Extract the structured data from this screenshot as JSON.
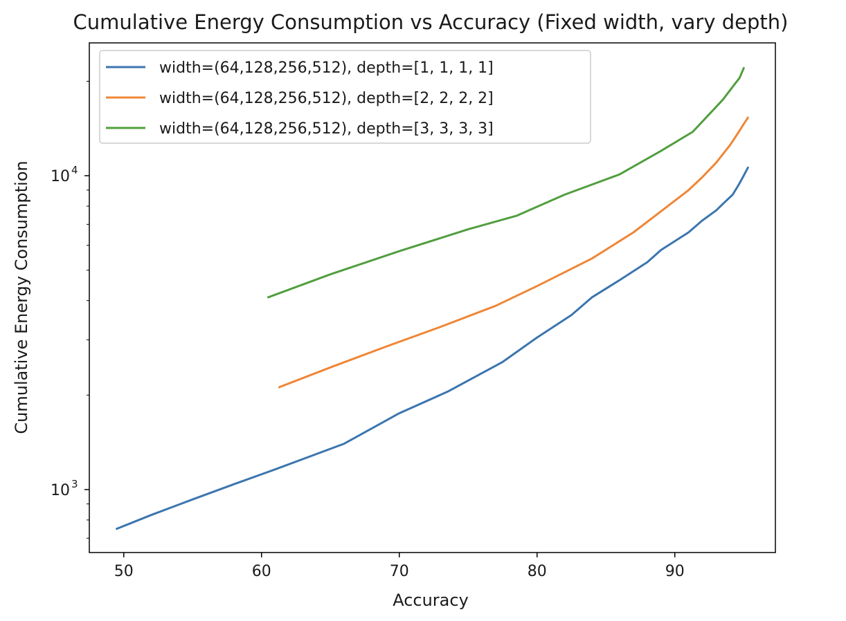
{
  "chart_data": {
    "type": "line",
    "title": "Cumulative Energy Consumption vs Accuracy (Fixed width, vary depth)",
    "xlabel": "Accuracy",
    "ylabel": "Cumulative Energy Consumption",
    "xscale": "linear",
    "yscale": "log",
    "xlim": [
      47.5,
      97.3
    ],
    "ylim": [
      630,
      26500
    ],
    "xticks": [
      50,
      60,
      70,
      80,
      90
    ],
    "xtick_labels": [
      "50",
      "60",
      "70",
      "80",
      "90"
    ],
    "yticks": [
      1000,
      10000
    ],
    "ytick_labels": [
      {
        "base": "10",
        "exp": "3"
      },
      {
        "base": "10",
        "exp": "4"
      }
    ],
    "grid": false,
    "legend_position": "upper-left",
    "series": [
      {
        "name": "width=(64,128,256,512), depth=[1, 1, 1, 1]",
        "color": "#3b75af",
        "x": [
          49.5,
          52,
          55,
          58,
          61,
          63,
          66,
          70,
          73.5,
          77.5,
          80,
          82.5,
          84,
          86,
          88,
          89,
          91,
          92,
          93,
          93.7,
          94.2,
          94.6,
          95,
          95.3
        ],
        "y": [
          750,
          830,
          930,
          1040,
          1160,
          1250,
          1400,
          1750,
          2050,
          2550,
          3050,
          3600,
          4100,
          4650,
          5300,
          5800,
          6600,
          7200,
          7750,
          8300,
          8700,
          9300,
          10000,
          10600
        ]
      },
      {
        "name": "width=(64,128,256,512), depth=[2, 2, 2, 2]",
        "color": "#ef8636",
        "x": [
          61.3,
          65,
          69,
          73,
          77,
          80,
          84,
          87,
          89,
          91,
          92,
          93,
          94,
          94.6,
          95,
          95.3
        ],
        "y": [
          2120,
          2450,
          2850,
          3300,
          3850,
          4450,
          5450,
          6600,
          7700,
          9000,
          9900,
          11000,
          12500,
          13700,
          14600,
          15300
        ]
      },
      {
        "name": "width=(64,128,256,512), depth=[3, 3, 3, 3]",
        "color": "#519e3e",
        "x": [
          60.5,
          65,
          70,
          75,
          78.5,
          82,
          86,
          89,
          91.3,
          92.5,
          93.5,
          94.2,
          94.7,
          95
        ],
        "y": [
          4100,
          4850,
          5750,
          6750,
          7450,
          8700,
          10100,
          12000,
          13800,
          15700,
          17500,
          19200,
          20500,
          22000
        ]
      }
    ]
  }
}
